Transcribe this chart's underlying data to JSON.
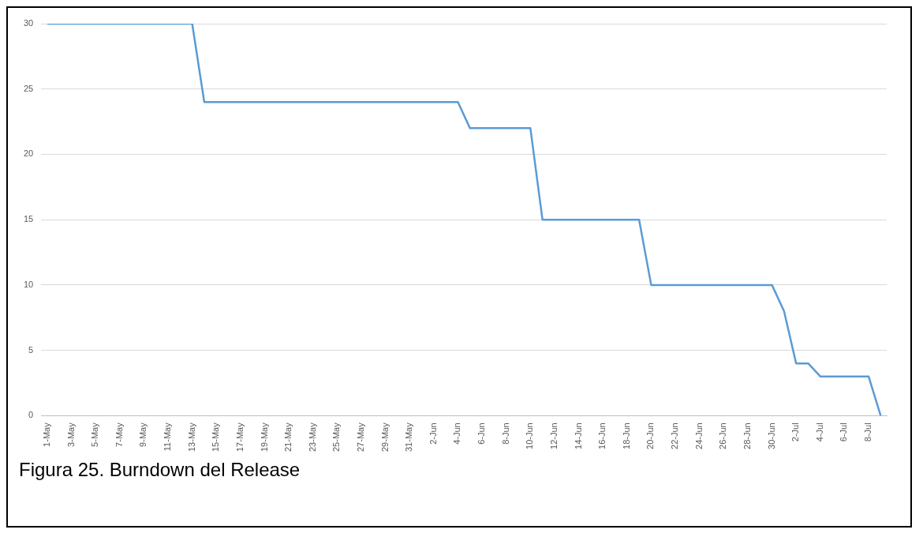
{
  "chart_data": {
    "type": "line",
    "categories": [
      "1-May",
      null,
      "3-May",
      null,
      "5-May",
      null,
      "7-May",
      null,
      "9-May",
      null,
      "11-May",
      null,
      "13-May",
      null,
      "15-May",
      null,
      "17-May",
      null,
      "19-May",
      null,
      "21-May",
      null,
      "23-May",
      null,
      "25-May",
      null,
      "27-May",
      null,
      "29-May",
      null,
      "31-May",
      null,
      "2-Jun",
      null,
      "4-Jun",
      null,
      "6-Jun",
      null,
      "8-Jun",
      null,
      "10-Jun",
      null,
      "12-Jun",
      null,
      "14-Jun",
      null,
      "16-Jun",
      null,
      "18-Jun",
      null,
      "20-Jun",
      null,
      "22-Jun",
      null,
      "24-Jun",
      null,
      "26-Jun",
      null,
      "28-Jun",
      null,
      "30-Jun",
      null,
      "2-Jul",
      null,
      "4-Jul",
      null,
      "6-Jul",
      null,
      "8-Jul",
      null
    ],
    "values": [
      30,
      30,
      30,
      30,
      30,
      30,
      30,
      30,
      30,
      30,
      30,
      30,
      30,
      24,
      24,
      24,
      24,
      24,
      24,
      24,
      24,
      24,
      24,
      24,
      24,
      24,
      24,
      24,
      24,
      24,
      24,
      24,
      24,
      24,
      24,
      22,
      22,
      22,
      22,
      22,
      22,
      15,
      15,
      15,
      15,
      15,
      15,
      15,
      15,
      15,
      10,
      10,
      10,
      10,
      10,
      10,
      10,
      10,
      10,
      10,
      10,
      8,
      4,
      4,
      3,
      3,
      3,
      3,
      3,
      0
    ],
    "color": "#5b9bd5",
    "ylim": [
      0,
      30
    ],
    "yticks": [
      0,
      5,
      10,
      15,
      20,
      25,
      30
    ],
    "grid": "y",
    "marker": "none",
    "line_style": "solid",
    "annotations": [
      "Figura 25. Burndown del Release"
    ]
  }
}
